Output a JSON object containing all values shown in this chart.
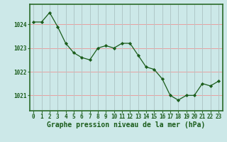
{
  "x": [
    0,
    1,
    2,
    3,
    4,
    5,
    6,
    7,
    8,
    9,
    10,
    11,
    12,
    13,
    14,
    15,
    16,
    17,
    18,
    19,
    20,
    21,
    22,
    23
  ],
  "y": [
    1024.1,
    1024.1,
    1024.5,
    1023.9,
    1023.2,
    1022.8,
    1022.6,
    1022.5,
    1023.0,
    1023.1,
    1023.0,
    1023.2,
    1023.2,
    1022.7,
    1022.2,
    1022.1,
    1021.7,
    1021.0,
    1020.8,
    1021.0,
    1021.0,
    1021.5,
    1021.4,
    1021.6
  ],
  "line_color": "#1a5c1a",
  "marker_color": "#1a5c1a",
  "bg_color": "#cce8e8",
  "grid_color_v": "#b0c8c8",
  "grid_color_h": "#e8a0a0",
  "border_color": "#2a6a2a",
  "xlabel": "Graphe pression niveau de la mer (hPa)",
  "xlabel_color": "#1a5c1a",
  "ylabel_ticks": [
    1021,
    1022,
    1023,
    1024
  ],
  "ylim": [
    1020.35,
    1024.85
  ],
  "xlim": [
    -0.5,
    23.5
  ],
  "xticks": [
    0,
    1,
    2,
    3,
    4,
    5,
    6,
    7,
    8,
    9,
    10,
    11,
    12,
    13,
    14,
    15,
    16,
    17,
    18,
    19,
    20,
    21,
    22,
    23
  ],
  "tick_color": "#1a5c1a",
  "tick_fontsize": 5.5,
  "xlabel_fontsize": 7.0
}
